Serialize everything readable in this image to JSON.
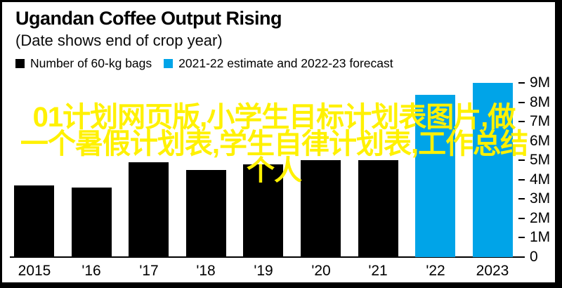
{
  "header": {
    "title": "Ugandan Coffee Output Rising",
    "subtitle": "(Date shows end of crop year)"
  },
  "legend": {
    "items": [
      {
        "label": "Number of 60-kg bags",
        "color": "#000000"
      },
      {
        "label": "2021-22 estimate and 2022-23 forecast",
        "color": "#00A4E8"
      }
    ]
  },
  "overlay": {
    "full_text": "01计划网页版,小学生目标计划表图片,做一个暑假计划表,学生自律计划表,工作总结个人",
    "lines": [
      "01计划网页版,小学生目标计划表图片,做",
      "一个暑假计划表,学生自律计划表,工作总结",
      "个人"
    ],
    "color": "#FFF100"
  },
  "chart_data": {
    "type": "bar",
    "title": "Ugandan Coffee Output Rising",
    "subtitle": "(Date shows end of crop year)",
    "categories": [
      "2015",
      "'16",
      "'17",
      "'18",
      "'19",
      "'20",
      "'21",
      "'22",
      "2023"
    ],
    "values": [
      3.7,
      3.6,
      4.9,
      4.5,
      4.8,
      5.0,
      5.0,
      8.4,
      9.0
    ],
    "bar_colors": [
      "#000000",
      "#000000",
      "#000000",
      "#000000",
      "#000000",
      "#000000",
      "#000000",
      "#00A4E8",
      "#00A4E8"
    ],
    "series": [
      {
        "name": "Number of 60-kg bags",
        "color": "#000000",
        "categories": [
          "2015",
          "'16",
          "'17",
          "'18",
          "'19",
          "'20",
          "'21"
        ],
        "values": [
          3.7,
          3.6,
          4.9,
          4.5,
          4.8,
          5.0,
          5.0
        ]
      },
      {
        "name": "2021-22 estimate and 2022-23 forecast",
        "color": "#00A4E8",
        "categories": [
          "'22",
          "2023"
        ],
        "values": [
          8.4,
          9.0
        ]
      }
    ],
    "xlabel": "",
    "ylabel": "",
    "ylim": [
      0,
      9
    ],
    "yticks_labels": [
      "9M",
      "8M",
      "7M",
      "6M",
      "5M",
      "4M",
      "3M",
      "2M",
      "1M",
      "0"
    ],
    "yticks_values": [
      9,
      8,
      7,
      6,
      5,
      4,
      3,
      2,
      1,
      0
    ],
    "y_axis_side": "right",
    "grid": false,
    "legend_position": "top",
    "background": "#FFFFFF"
  }
}
